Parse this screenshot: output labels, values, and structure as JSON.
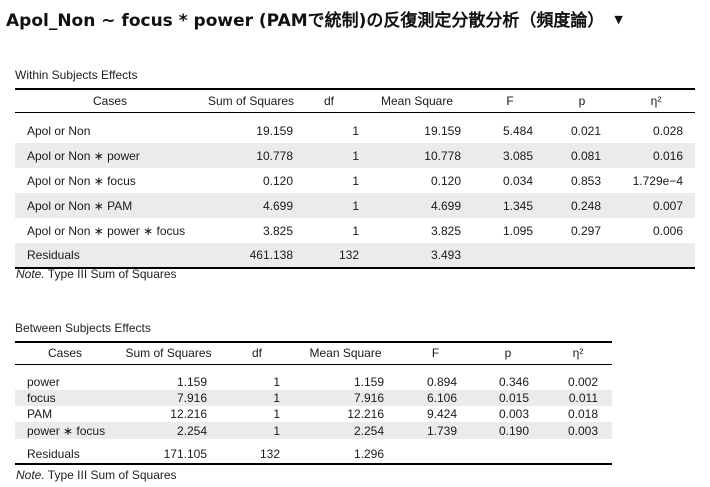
{
  "title": "Apol_Non ~ focus * power (PAMで統制)の反復測定分散分析（頻度論）",
  "within": {
    "title": "Within Subjects Effects",
    "headers": [
      "Cases",
      "Sum of Squares",
      "df",
      "Mean Square",
      "F",
      "p",
      "η²"
    ],
    "rows": [
      [
        "Apol or Non",
        "19.159",
        "1",
        "19.159",
        "5.484",
        "0.021",
        "0.028"
      ],
      [
        "Apol or Non ∗ power",
        "10.778",
        "1",
        "10.778",
        "3.085",
        "0.081",
        "0.016"
      ],
      [
        "Apol or Non ∗ focus",
        "0.120",
        "1",
        "0.120",
        "0.034",
        "0.853",
        "1.729e−4"
      ],
      [
        "Apol or Non ∗ PAM",
        "4.699",
        "1",
        "4.699",
        "1.345",
        "0.248",
        "0.007"
      ],
      [
        "Apol or Non ∗ power ∗ focus",
        "3.825",
        "1",
        "3.825",
        "1.095",
        "0.297",
        "0.006"
      ],
      [
        "Residuals",
        "461.138",
        "132",
        "3.493",
        "",
        "",
        ""
      ]
    ],
    "note_label": "Note.",
    "note_text": " Type III Sum of Squares"
  },
  "between": {
    "title": "Between Subjects Effects",
    "headers": [
      "Cases",
      "Sum of Squares",
      "df",
      "Mean Square",
      "F",
      "p",
      "η²"
    ],
    "rows": [
      [
        "power",
        "1.159",
        "1",
        "1.159",
        "0.894",
        "0.346",
        "0.002"
      ],
      [
        "focus",
        "7.916",
        "1",
        "7.916",
        "6.106",
        "0.015",
        "0.011"
      ],
      [
        "PAM",
        "12.216",
        "1",
        "12.216",
        "9.424",
        "0.003",
        "0.018"
      ],
      [
        "power ∗ focus",
        "2.254",
        "1",
        "2.254",
        "1.739",
        "0.190",
        "0.003"
      ],
      [
        "Residuals",
        "171.105",
        "132",
        "1.296",
        "",
        "",
        ""
      ]
    ],
    "note_label": "Note.",
    "note_text": " Type III Sum of Squares"
  }
}
